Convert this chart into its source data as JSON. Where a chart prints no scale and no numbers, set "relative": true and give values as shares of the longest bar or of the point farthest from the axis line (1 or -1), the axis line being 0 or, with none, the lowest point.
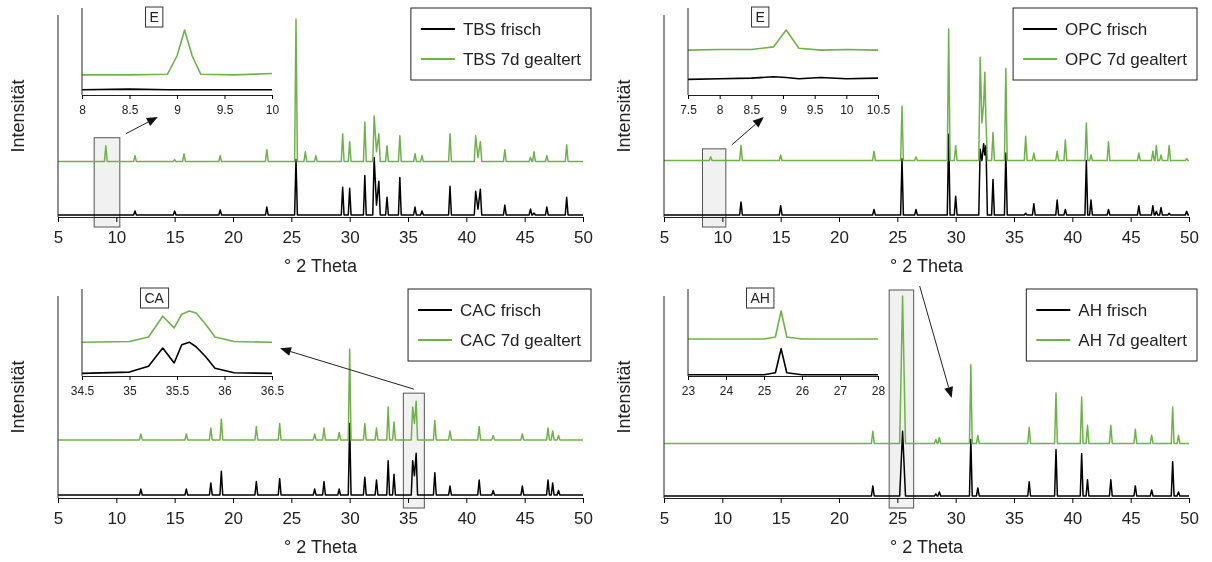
{
  "chart_data": [
    {
      "type": "line",
      "xlabel": "° 2 Theta",
      "ylabel": "Intensität",
      "relative": true,
      "legend": "top right",
      "xlim": [
        5,
        50
      ],
      "xticks": [
        5,
        10,
        15,
        20,
        25,
        30,
        35,
        40,
        45,
        50
      ],
      "bands": [
        {
          "axis": "x",
          "from": 8.1,
          "to": 10.3
        }
      ],
      "x": [
        5,
        8.98,
        9.1,
        9.22,
        11.48,
        11.6,
        11.72,
        14.88,
        15,
        15.12,
        15.68,
        15.8,
        15.92,
        18.78,
        18.9,
        19.02,
        22.78,
        22.9,
        23.02,
        25.28,
        25.4,
        25.52,
        26.08,
        26.2,
        26.32,
        26.98,
        27.1,
        27.22,
        29.28,
        29.4,
        29.52,
        29.88,
        30,
        30.12,
        31.18,
        31.3,
        31.42,
        31.98,
        32.1,
        32.3,
        32.5,
        32.62,
        33.08,
        33.2,
        33.32,
        34.18,
        34.3,
        34.42,
        35.48,
        35.6,
        35.72,
        36.08,
        36.2,
        36.32,
        38.48,
        38.6,
        38.72,
        40.68,
        40.8,
        41,
        41.2,
        41.32,
        43.18,
        43.3,
        43.42,
        45.38,
        45.5,
        45.62,
        45.68,
        45.8,
        45.92,
        46.78,
        46.9,
        47.02,
        48.48,
        48.6,
        48.72,
        50
      ],
      "series": [
        {
          "name": "TBS frisch",
          "color": "#000000",
          "values": [
            0.01,
            0.01,
            0.01,
            0.01,
            0.01,
            0.03,
            0.01,
            0.01,
            0.03,
            0.01,
            0.01,
            0.01,
            0.01,
            0.01,
            0.035,
            0.01,
            0.01,
            0.05,
            0.01,
            0.01,
            0.29,
            0.01,
            0.01,
            0.01,
            0.01,
            0.01,
            0.01,
            0.01,
            0.01,
            0.15,
            0.01,
            0.01,
            0.145,
            0.01,
            0.01,
            0.21,
            0.01,
            0.01,
            0.3,
            0.06,
            0.18,
            0.01,
            0.01,
            0.1,
            0.01,
            0.01,
            0.2,
            0.01,
            0.01,
            0.05,
            0.01,
            0.01,
            0.03,
            0.01,
            0.01,
            0.155,
            0.01,
            0.01,
            0.13,
            0.04,
            0.14,
            0.01,
            0.01,
            0.06,
            0.01,
            0.01,
            0.04,
            0.01,
            0.01,
            0.02,
            0.01,
            0.01,
            0.05,
            0.01,
            0.01,
            0.1,
            0.01,
            0.01
          ]
        },
        {
          "name": "TBS 7d gealtert",
          "color": "#6fb24a",
          "values": [
            0.28,
            0.28,
            0.36,
            0.28,
            0.28,
            0.31,
            0.28,
            0.28,
            0.29,
            0.28,
            0.28,
            0.32,
            0.28,
            0.28,
            0.31,
            0.28,
            0.28,
            0.34,
            0.28,
            0.28,
            1,
            0.28,
            0.28,
            0.33,
            0.28,
            0.28,
            0.31,
            0.28,
            0.28,
            0.42,
            0.28,
            0.28,
            0.38,
            0.28,
            0.28,
            0.48,
            0.28,
            0.28,
            0.51,
            0.33,
            0.42,
            0.28,
            0.28,
            0.36,
            0.28,
            0.28,
            0.41,
            0.28,
            0.28,
            0.32,
            0.28,
            0.28,
            0.31,
            0.28,
            0.28,
            0.42,
            0.28,
            0.28,
            0.41,
            0.3,
            0.38,
            0.28,
            0.28,
            0.34,
            0.28,
            0.28,
            0.3,
            0.28,
            0.28,
            0.33,
            0.28,
            0.28,
            0.31,
            0.28,
            0.28,
            0.365,
            0.28,
            0.28
          ]
        }
      ]
    },
    {
      "type": "line",
      "title": "E",
      "relative": true,
      "xlim": [
        8,
        10
      ],
      "xticks": [
        8,
        8.5,
        9,
        9.5,
        10
      ],
      "x": [
        8,
        8.5,
        8.9,
        9,
        9.08,
        9.16,
        9.25,
        9.6,
        10
      ],
      "series": [
        {
          "color": "#000000",
          "values": [
            0.08,
            0.09,
            0.08,
            0.08,
            0.08,
            0.08,
            0.08,
            0.08,
            0.08
          ]
        },
        {
          "color": "#6fb24a",
          "values": [
            0.31,
            0.31,
            0.32,
            0.6,
            1,
            0.6,
            0.32,
            0.31,
            0.33
          ]
        }
      ]
    },
    {
      "type": "line",
      "xlabel": "° 2 Theta",
      "ylabel": "Intensität",
      "relative": true,
      "legend": "top right",
      "xlim": [
        5,
        50
      ],
      "xticks": [
        5,
        10,
        15,
        20,
        25,
        30,
        35,
        40,
        45,
        50
      ],
      "bands": [
        {
          "axis": "x",
          "from": 8.3,
          "to": 10.3
        }
      ],
      "x": [
        5,
        8.88,
        9,
        9.12,
        11.48,
        11.6,
        11.72,
        14.88,
        15,
        15.12,
        22.88,
        23,
        23.12,
        25.28,
        25.4,
        25.52,
        26.48,
        26.6,
        26.72,
        29.28,
        29.4,
        29.52,
        29.88,
        30,
        30.12,
        31.98,
        32.1,
        32.25,
        32.4,
        32.5,
        32.6,
        32.72,
        33.08,
        33.2,
        33.32,
        34.18,
        34.3,
        34.42,
        35.88,
        36,
        36.12,
        36.58,
        36.7,
        36.82,
        38.58,
        38.7,
        38.82,
        39.28,
        39.4,
        39.52,
        41.08,
        41.2,
        41.32,
        41.48,
        41.6,
        41.72,
        42.98,
        43.1,
        43.22,
        45.58,
        45.7,
        45.82,
        46.78,
        46.9,
        47.02,
        47.08,
        47.2,
        47.32,
        47.48,
        47.6,
        47.72,
        48.18,
        48.3,
        48.42,
        49.68,
        49.8,
        49.92,
        50
      ],
      "series": [
        {
          "name": "OPC frisch",
          "color": "#000000",
          "values": [
            0.01,
            0.01,
            0.01,
            0.01,
            0.01,
            0.08,
            0.01,
            0.01,
            0.06,
            0.01,
            0.01,
            0.04,
            0.01,
            0.01,
            0.31,
            0.01,
            0.01,
            0.04,
            0.01,
            0.01,
            0.44,
            0.01,
            0.01,
            0.11,
            0.01,
            0.01,
            0.36,
            0.3,
            0.39,
            0.33,
            0.38,
            0.01,
            0.01,
            0.2,
            0.01,
            0.01,
            0.34,
            0.01,
            0.01,
            0.02,
            0.01,
            0.01,
            0.07,
            0.01,
            0.01,
            0.09,
            0.01,
            0.01,
            0.04,
            0.01,
            0.01,
            0.3,
            0.01,
            0.01,
            0.09,
            0.01,
            0.01,
            0.04,
            0.01,
            0.01,
            0.06,
            0.01,
            0.01,
            0.06,
            0.01,
            0.01,
            0.03,
            0.01,
            0.01,
            0.05,
            0.01,
            0.01,
            0.02,
            0.01,
            0.01,
            0.03,
            0.01,
            0.01
          ]
        },
        {
          "name": "OPC 7d gealtert",
          "color": "#6fb24a",
          "values": [
            0.3,
            0.3,
            0.32,
            0.3,
            0.3,
            0.38,
            0.3,
            0.3,
            0.33,
            0.3,
            0.3,
            0.35,
            0.3,
            0.3,
            0.59,
            0.3,
            0.3,
            0.32,
            0.3,
            0.3,
            1,
            0.3,
            0.3,
            0.38,
            0.3,
            0.3,
            0.85,
            0.5,
            0.6,
            0.77,
            0.5,
            0.3,
            0.3,
            0.45,
            0.3,
            0.3,
            0.79,
            0.3,
            0.3,
            0.43,
            0.3,
            0.3,
            0.34,
            0.3,
            0.3,
            0.35,
            0.3,
            0.3,
            0.41,
            0.3,
            0.3,
            0.5,
            0.3,
            0.3,
            0.33,
            0.3,
            0.3,
            0.4,
            0.3,
            0.3,
            0.34,
            0.3,
            0.3,
            0.35,
            0.3,
            0.3,
            0.38,
            0.3,
            0.3,
            0.33,
            0.3,
            0.3,
            0.38,
            0.3,
            0.3,
            0.31,
            0.3,
            0.3
          ]
        }
      ]
    },
    {
      "type": "line",
      "title": "E",
      "relative": true,
      "xlim": [
        7.5,
        10.5
      ],
      "xticks": [
        7.5,
        8,
        8.5,
        9,
        9.5,
        10,
        10.5
      ],
      "x": [
        7.5,
        8,
        8.5,
        8.85,
        9.05,
        9.25,
        9.6,
        10,
        10.5
      ],
      "series": [
        {
          "color": "#000000",
          "values": [
            0.24,
            0.25,
            0.26,
            0.28,
            0.27,
            0.25,
            0.27,
            0.25,
            0.26
          ]
        },
        {
          "color": "#6fb24a",
          "values": [
            0.69,
            0.7,
            0.7,
            0.74,
            1,
            0.72,
            0.69,
            0.7,
            0.69
          ]
        }
      ]
    },
    {
      "type": "line",
      "xlabel": "° 2 Theta",
      "ylabel": "Intensität",
      "relative": true,
      "legend": "top right",
      "xlim": [
        5,
        50
      ],
      "xticks": [
        5,
        10,
        15,
        20,
        25,
        30,
        35,
        40,
        45,
        50
      ],
      "bands": [
        {
          "axis": "x",
          "from": 34.6,
          "to": 36.4
        }
      ],
      "x": [
        5,
        11.98,
        12.1,
        12.22,
        15.88,
        16,
        16.12,
        17.98,
        18.1,
        18.22,
        18.88,
        19,
        19.12,
        21.88,
        22,
        22.12,
        23.88,
        24,
        24.12,
        26.88,
        27,
        27.12,
        27.68,
        27.8,
        27.92,
        28.98,
        29.1,
        29.22,
        29.88,
        30,
        30.12,
        31.18,
        31.3,
        31.42,
        32.18,
        32.3,
        32.42,
        33.18,
        33.3,
        33.42,
        33.68,
        33.8,
        33.92,
        35.28,
        35.4,
        35.55,
        35.7,
        35.82,
        37.18,
        37.3,
        37.42,
        38.48,
        38.6,
        38.72,
        40.98,
        41.1,
        41.22,
        42.18,
        42.3,
        42.42,
        44.68,
        44.8,
        44.92,
        46.88,
        47,
        47.12,
        47.28,
        47.4,
        47.52,
        47.78,
        47.9,
        48.02,
        50
      ],
      "series": [
        {
          "name": "CAC frisch",
          "color": "#000000",
          "values": [
            0.02,
            0.02,
            0.06,
            0.02,
            0.02,
            0.06,
            0.02,
            0.02,
            0.1,
            0.02,
            0.02,
            0.18,
            0.02,
            0.02,
            0.11,
            0.02,
            0.02,
            0.13,
            0.02,
            0.02,
            0.06,
            0.02,
            0.02,
            0.11,
            0.02,
            0.02,
            0.06,
            0.02,
            0.02,
            0.5,
            0.02,
            0.02,
            0.14,
            0.02,
            0.02,
            0.12,
            0.02,
            0.02,
            0.25,
            0.02,
            0.02,
            0.16,
            0.02,
            0.02,
            0.25,
            0.15,
            0.3,
            0.02,
            0.02,
            0.17,
            0.02,
            0.02,
            0.08,
            0.02,
            0.02,
            0.12,
            0.02,
            0.02,
            0.05,
            0.02,
            0.02,
            0.08,
            0.02,
            0.02,
            0.12,
            0.02,
            0.02,
            0.1,
            0.02,
            0.02,
            0.05,
            0.02,
            0.02
          ]
        },
        {
          "name": "CAC 7d gealtert",
          "color": "#6fb24a",
          "values": [
            0.39,
            0.39,
            0.43,
            0.39,
            0.39,
            0.43,
            0.39,
            0.39,
            0.47,
            0.39,
            0.39,
            0.53,
            0.39,
            0.39,
            0.48,
            0.39,
            0.39,
            0.5,
            0.39,
            0.39,
            0.43,
            0.39,
            0.39,
            0.47,
            0.39,
            0.39,
            0.44,
            0.39,
            0.39,
            1,
            0.39,
            0.39,
            0.5,
            0.39,
            0.39,
            0.47,
            0.39,
            0.39,
            0.61,
            0.39,
            0.39,
            0.51,
            0.39,
            0.39,
            0.61,
            0.5,
            0.65,
            0.39,
            0.39,
            0.52,
            0.39,
            0.39,
            0.45,
            0.39,
            0.39,
            0.48,
            0.39,
            0.39,
            0.42,
            0.39,
            0.39,
            0.43,
            0.39,
            0.39,
            0.47,
            0.39,
            0.39,
            0.45,
            0.39,
            0.39,
            0.42,
            0.39,
            0.39
          ]
        }
      ]
    },
    {
      "type": "line",
      "title": "CA",
      "relative": true,
      "xlim": [
        34.5,
        36.5
      ],
      "xticks": [
        34.5,
        35,
        35.5,
        36,
        36.5
      ],
      "x": [
        34.5,
        35,
        35.2,
        35.35,
        35.47,
        35.55,
        35.63,
        35.7,
        35.8,
        35.9,
        36.1,
        36.5
      ],
      "series": [
        {
          "color": "#000000",
          "values": [
            0.04,
            0.06,
            0.15,
            0.43,
            0.2,
            0.48,
            0.52,
            0.45,
            0.3,
            0.12,
            0.05,
            0.04
          ]
        },
        {
          "color": "#6fb24a",
          "values": [
            0.52,
            0.53,
            0.6,
            0.92,
            0.74,
            0.95,
            1,
            0.97,
            0.8,
            0.6,
            0.53,
            0.52
          ]
        }
      ]
    },
    {
      "type": "line",
      "xlabel": "° 2 Theta",
      "ylabel": "Intensität",
      "relative": true,
      "legend": "top right",
      "xlim": [
        5,
        50
      ],
      "xticks": [
        5,
        10,
        15,
        20,
        25,
        30,
        35,
        40,
        45,
        50
      ],
      "bands": [
        {
          "axis": "x",
          "from": 24.3,
          "to": 26.4
        }
      ],
      "x": [
        5,
        22.78,
        22.9,
        23.02,
        25.2,
        25.45,
        25.7,
        28.18,
        28.3,
        28.42,
        28.48,
        28.6,
        28.72,
        31.18,
        31.3,
        31.42,
        31.78,
        31.9,
        32.02,
        36.18,
        36.3,
        36.42,
        38.48,
        38.6,
        38.72,
        40.68,
        40.8,
        40.92,
        41.18,
        41.3,
        41.42,
        43.18,
        43.3,
        43.42,
        45.28,
        45.4,
        45.52,
        46.68,
        46.8,
        46.92,
        48.48,
        48.6,
        48.72,
        48.98,
        49.1,
        49.22,
        50
      ],
      "series": [
        {
          "name": "AH frisch",
          "color": "#000000",
          "values": [
            0.01,
            0.01,
            0.06,
            0.01,
            0.01,
            0.33,
            0.01,
            0.01,
            0.02,
            0.01,
            0.01,
            0.03,
            0.01,
            0.01,
            0.29,
            0.01,
            0.01,
            0.05,
            0.01,
            0.01,
            0.08,
            0.01,
            0.01,
            0.24,
            0.01,
            0.01,
            0.22,
            0.01,
            0.01,
            0.09,
            0.01,
            0.01,
            0.09,
            0.01,
            0.01,
            0.06,
            0.01,
            0.01,
            0.04,
            0.01,
            0.01,
            0.18,
            0.01,
            0.01,
            0.03,
            0.01,
            0.01
          ]
        },
        {
          "name": "AH 7d gealtert",
          "color": "#6fb24a",
          "values": [
            0.27,
            0.27,
            0.33,
            0.27,
            0.27,
            1,
            0.27,
            0.27,
            0.29,
            0.27,
            0.27,
            0.3,
            0.27,
            0.27,
            0.66,
            0.27,
            0.27,
            0.31,
            0.27,
            0.27,
            0.35,
            0.27,
            0.27,
            0.52,
            0.27,
            0.27,
            0.5,
            0.27,
            0.27,
            0.36,
            0.27,
            0.27,
            0.36,
            0.27,
            0.27,
            0.34,
            0.27,
            0.27,
            0.31,
            0.27,
            0.27,
            0.45,
            0.27,
            0.27,
            0.31,
            0.27,
            0.27
          ]
        }
      ]
    },
    {
      "type": "line",
      "title": "AH",
      "relative": true,
      "xlim": [
        23,
        28
      ],
      "xticks": [
        23,
        24,
        25,
        26,
        27,
        28
      ],
      "x": [
        23,
        25,
        25.3,
        25.45,
        25.6,
        26,
        28
      ],
      "series": [
        {
          "color": "#000000",
          "values": [
            0.02,
            0.02,
            0.05,
            0.42,
            0.05,
            0.02,
            0.02
          ]
        },
        {
          "color": "#6fb24a",
          "values": [
            0.57,
            0.57,
            0.6,
            1,
            0.6,
            0.57,
            0.57
          ]
        }
      ]
    }
  ]
}
